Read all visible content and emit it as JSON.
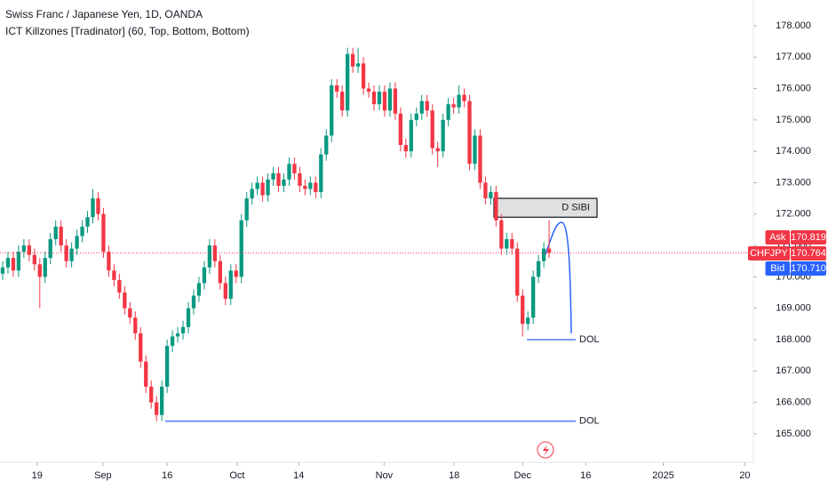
{
  "chart_data": {
    "type": "candlestick",
    "title": "Swiss Franc / Japanese Yen, 1D, OANDA",
    "subtitle": "ICT Killzones [Tradinator] (60, Top, Bottom, Bottom)",
    "up_color": "#089981",
    "down_color": "#f23645",
    "open": [
      170.1,
      170.3,
      170.6,
      170.2,
      170.8,
      171.0,
      170.7,
      170.4,
      170.0,
      170.6,
      171.2,
      171.6,
      171.0,
      170.5,
      170.9,
      171.3,
      171.6,
      171.9,
      172.5,
      172.0,
      170.8,
      170.2,
      169.9,
      169.5,
      169.0,
      168.7,
      168.2,
      167.3,
      166.5,
      166.0,
      165.6,
      166.5,
      167.8,
      168.1,
      168.2,
      168.4,
      169.0,
      169.4,
      169.8,
      170.3,
      171.0,
      170.5,
      169.8,
      169.3,
      170.2,
      170.0,
      171.8,
      172.5,
      172.8,
      173.0,
      172.6,
      173.1,
      173.3,
      172.9,
      173.1,
      173.6,
      173.3,
      172.9,
      172.8,
      173.0,
      172.7,
      173.9,
      174.5,
      176.1,
      175.9,
      175.3,
      177.1,
      176.7,
      176.8,
      176.0,
      175.9,
      175.5,
      175.9,
      175.3,
      176.0,
      175.2,
      174.2,
      174.0,
      175.0,
      175.2,
      175.6,
      175.3,
      174.1,
      174.0,
      175.0,
      175.5,
      175.4,
      175.8,
      175.6,
      173.6,
      174.5,
      173.0,
      172.5,
      172.7,
      171.8,
      170.9,
      171.2,
      170.9,
      169.4,
      168.5,
      168.7,
      170.0,
      170.5,
      170.9
    ],
    "high": [
      170.5,
      170.8,
      170.8,
      171.0,
      171.2,
      171.2,
      170.9,
      170.6,
      170.8,
      171.4,
      171.8,
      171.8,
      171.2,
      171.1,
      171.5,
      171.8,
      172.1,
      172.8,
      172.7,
      172.2,
      171.0,
      170.4,
      170.1,
      169.7,
      169.2,
      168.9,
      168.4,
      167.5,
      166.7,
      166.2,
      166.7,
      168.0,
      168.3,
      168.4,
      168.6,
      169.2,
      169.6,
      170.0,
      170.5,
      171.2,
      171.2,
      170.7,
      170.0,
      170.4,
      170.4,
      172.0,
      172.7,
      173.0,
      173.2,
      173.2,
      173.3,
      173.5,
      173.5,
      173.3,
      173.8,
      173.8,
      173.5,
      173.1,
      173.2,
      173.2,
      174.1,
      174.7,
      176.3,
      176.3,
      176.1,
      177.3,
      177.3,
      177.3,
      177.0,
      176.2,
      176.1,
      176.1,
      176.1,
      176.2,
      176.2,
      175.4,
      174.4,
      175.2,
      175.4,
      175.8,
      175.8,
      175.5,
      174.3,
      175.2,
      175.7,
      175.7,
      176.1,
      176.0,
      175.8,
      174.7,
      174.7,
      173.2,
      172.9,
      172.9,
      172.0,
      171.4,
      171.4,
      171.1,
      169.6,
      168.9,
      170.2,
      170.7,
      171.1,
      171.8
    ],
    "low": [
      169.9,
      170.1,
      170.0,
      170.0,
      170.6,
      170.5,
      170.2,
      169.0,
      169.8,
      170.4,
      171.0,
      170.8,
      170.3,
      170.3,
      170.7,
      171.1,
      171.4,
      171.7,
      171.8,
      170.6,
      170.0,
      169.7,
      169.3,
      168.8,
      168.5,
      168.0,
      167.1,
      166.3,
      165.8,
      165.4,
      165.4,
      166.3,
      167.6,
      167.9,
      168.0,
      168.2,
      168.8,
      169.2,
      169.6,
      170.1,
      170.3,
      169.6,
      169.1,
      169.1,
      169.8,
      169.8,
      171.6,
      172.3,
      172.6,
      172.4,
      172.4,
      172.9,
      172.7,
      172.7,
      172.9,
      173.1,
      172.7,
      172.6,
      172.6,
      172.5,
      172.5,
      173.7,
      174.3,
      175.7,
      175.1,
      175.1,
      176.5,
      176.5,
      175.8,
      175.7,
      175.3,
      175.3,
      175.1,
      175.1,
      175.0,
      174.0,
      173.8,
      173.8,
      174.8,
      175.0,
      175.1,
      173.9,
      173.5,
      173.8,
      174.8,
      175.2,
      175.2,
      175.4,
      173.4,
      173.4,
      172.8,
      172.3,
      172.3,
      171.6,
      170.7,
      170.7,
      170.7,
      169.2,
      168.1,
      168.3,
      168.5,
      169.8,
      170.3,
      170.6
    ],
    "close": [
      170.3,
      170.6,
      170.2,
      170.8,
      171.0,
      170.7,
      170.4,
      170.0,
      170.6,
      171.2,
      171.6,
      171.0,
      170.5,
      170.9,
      171.3,
      171.6,
      171.9,
      172.5,
      172.0,
      170.8,
      170.2,
      169.9,
      169.5,
      169.0,
      168.7,
      168.2,
      167.3,
      166.5,
      166.0,
      165.6,
      166.5,
      167.8,
      168.1,
      168.2,
      168.4,
      169.0,
      169.4,
      169.8,
      170.3,
      171.0,
      170.5,
      169.8,
      169.3,
      170.2,
      170.0,
      171.8,
      172.5,
      172.8,
      173.0,
      172.6,
      173.1,
      173.3,
      172.9,
      173.1,
      173.6,
      173.3,
      172.9,
      172.8,
      173.0,
      172.7,
      173.9,
      174.5,
      176.1,
      175.9,
      175.3,
      177.1,
      176.7,
      176.8,
      176.0,
      175.9,
      175.5,
      175.9,
      175.3,
      176.0,
      175.2,
      174.2,
      174.0,
      175.0,
      175.2,
      175.6,
      175.3,
      174.1,
      174.0,
      175.0,
      175.5,
      175.4,
      175.8,
      175.6,
      173.6,
      174.5,
      173.0,
      172.5,
      172.7,
      171.8,
      170.9,
      171.2,
      170.9,
      169.4,
      168.5,
      168.7,
      170.0,
      170.5,
      170.9,
      170.764
    ],
    "xlim": [
      0,
      142
    ],
    "xticks": [
      {
        "value": 7,
        "label": "19"
      },
      {
        "value": 19.4,
        "label": "Sep"
      },
      {
        "value": 31.5,
        "label": "16"
      },
      {
        "value": 44.7,
        "label": "Oct"
      },
      {
        "value": 56.3,
        "label": "14"
      },
      {
        "value": 72.4,
        "label": "Nov"
      },
      {
        "value": 85.6,
        "label": "18"
      },
      {
        "value": 98.5,
        "label": "Dec"
      },
      {
        "value": 110.4,
        "label": "16"
      },
      {
        "value": 125,
        "label": "2025"
      },
      {
        "value": 140.4,
        "label": "20"
      }
    ],
    "ylim": [
      164.09,
      178.82
    ],
    "yticks": [
      {
        "value": 165,
        "label": "165.000"
      },
      {
        "value": 166,
        "label": "166.000"
      },
      {
        "value": 167,
        "label": "167.000"
      },
      {
        "value": 168,
        "label": "168.000"
      },
      {
        "value": 169,
        "label": "169.000"
      },
      {
        "value": 170,
        "label": "170.000"
      },
      {
        "value": 171,
        "label": "171.000"
      },
      {
        "value": 172,
        "label": "172.000"
      },
      {
        "value": 173,
        "label": "173.000"
      },
      {
        "value": 174,
        "label": "174.000"
      },
      {
        "value": 175,
        "label": "175.000"
      },
      {
        "value": 176,
        "label": "176.000"
      },
      {
        "value": 177,
        "label": "177.000"
      },
      {
        "value": 178,
        "label": "178.000"
      }
    ],
    "grid": false,
    "zone": {
      "text": "D SIBI",
      "top": 172.5,
      "bottom": 171.9
    },
    "levels": [
      {
        "text": "DOL",
        "value": 168.0
      },
      {
        "text": "DOL",
        "value": 165.4
      }
    ],
    "price_tags": [
      {
        "name": "Ask",
        "value": 170.819,
        "label": "170.819",
        "color": "#f23645"
      },
      {
        "name": "CHFJPY",
        "value": 170.764,
        "label": "170.764",
        "color": "#f23645"
      },
      {
        "name": "Bid",
        "value": 170.71,
        "label": "170.710",
        "color": "#2962ff"
      }
    ]
  }
}
